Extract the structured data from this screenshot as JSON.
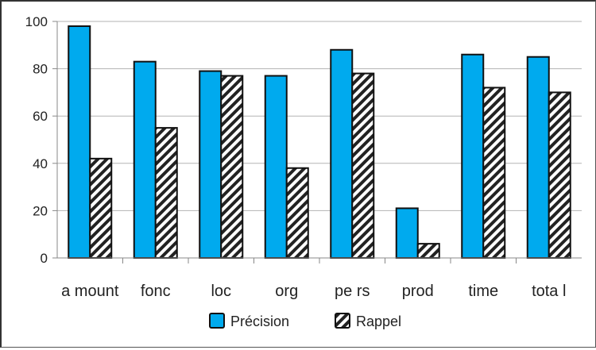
{
  "chart_data": {
    "type": "bar",
    "categories": [
      "a mount",
      "fonc",
      "loc",
      "org",
      "pe rs",
      "prod",
      "time",
      "tota l"
    ],
    "series": [
      {
        "name": "Précision",
        "values": [
          98,
          83,
          79,
          77,
          88,
          21,
          86,
          85
        ],
        "color": "#00aaee",
        "pattern": "solid"
      },
      {
        "name": "Rappel",
        "values": [
          42,
          55,
          77,
          38,
          78,
          6,
          72,
          70
        ],
        "color": "#ffffff",
        "pattern": "diagonal-hatch"
      }
    ],
    "yticks": [
      "0",
      "20",
      "40",
      "60",
      "80",
      "100"
    ],
    "ylim": [
      0,
      100
    ],
    "grid": true,
    "legend_position": "bottom",
    "title": "",
    "xlabel": "",
    "ylabel": ""
  }
}
